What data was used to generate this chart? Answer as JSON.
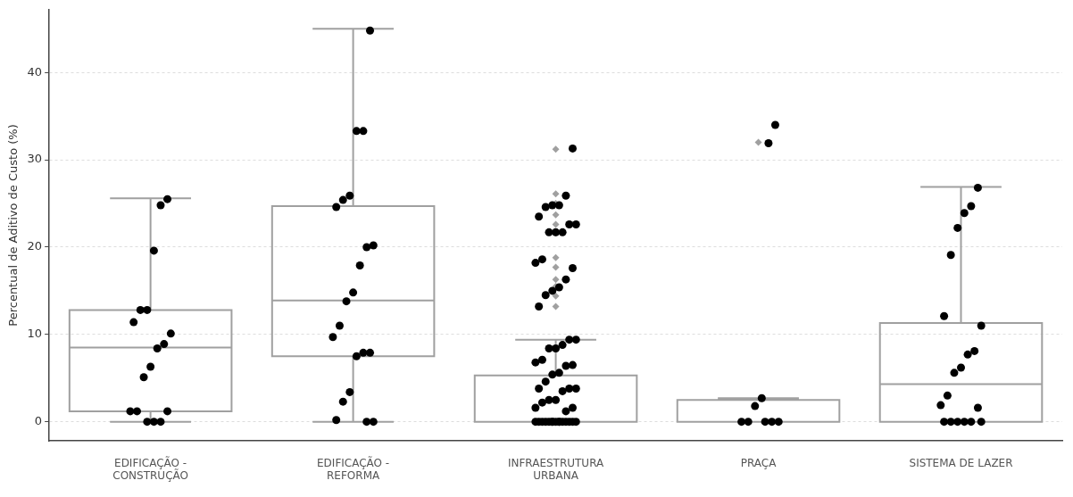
{
  "chart_data": {
    "type": "box",
    "ylabel": "Percentual de Aditivo de Custo (%)",
    "categories": [
      "EDIFICAÇÃO - CONSTRUÇÃO",
      "EDIFICAÇÃO - REFORMA",
      "INFRAESTRUTURA URBANA",
      "PRAÇA",
      "SISTEMA DE LAZER"
    ],
    "ylim": [
      -2.2,
      47.2
    ],
    "yticks": [
      0,
      10,
      20,
      30,
      40
    ],
    "grid": "y",
    "series": [
      {
        "type": "box",
        "color": "#a0a0a0",
        "marker": "diamond",
        "boxes": [
          {
            "low": 0,
            "q1": 1.2,
            "median": 8.5,
            "q3": 12.8,
            "high": 25.6
          },
          {
            "low": 0,
            "q1": 7.5,
            "median": 13.9,
            "q3": 24.7,
            "high": 45
          },
          {
            "low": 0,
            "q1": 0,
            "median": 0,
            "q3": 5.3,
            "high": 9.4,
            "outliers": [
              31.2,
              26.1,
              25.0,
              23.7,
              22.6,
              21.6,
              18.8,
              17.7,
              16.3,
              15.5,
              14.4,
              13.2
            ]
          },
          {
            "low": 0,
            "q1": 0,
            "median": 0,
            "q3": 2.5,
            "high": 2.7,
            "outliers": [
              32
            ]
          },
          {
            "low": 0,
            "q1": 0,
            "median": 4.3,
            "q3": 11.3,
            "high": 26.9
          }
        ]
      },
      {
        "type": "scatter",
        "color": "#000000",
        "marker": "circle",
        "x": [
          "EDIFICAÇÃO - CONSTRUÇÃO",
          "EDIFICAÇÃO - CONSTRUÇÃO",
          "EDIFICAÇÃO - CONSTRUÇÃO",
          "EDIFICAÇÃO - CONSTRUÇÃO",
          "EDIFICAÇÃO - CONSTRUÇÃO",
          "EDIFICAÇÃO - CONSTRUÇÃO",
          "EDIFICAÇÃO - CONSTRUÇÃO",
          "EDIFICAÇÃO - CONSTRUÇÃO",
          "EDIFICAÇÃO - CONSTRUÇÃO",
          "EDIFICAÇÃO - CONSTRUÇÃO",
          "EDIFICAÇÃO - CONSTRUÇÃO",
          "EDIFICAÇÃO - CONSTRUÇÃO",
          "EDIFICAÇÃO - CONSTRUÇÃO",
          "EDIFICAÇÃO - CONSTRUÇÃO",
          "EDIFICAÇÃO - CONSTRUÇÃO",
          "EDIFICAÇÃO - CONSTRUÇÃO",
          "EDIFICAÇÃO - CONSTRUÇÃO",
          "EDIFICAÇÃO - REFORMA",
          "EDIFICAÇÃO - REFORMA",
          "EDIFICAÇÃO - REFORMA",
          "EDIFICAÇÃO - REFORMA",
          "EDIFICAÇÃO - REFORMA",
          "EDIFICAÇÃO - REFORMA",
          "EDIFICAÇÃO - REFORMA",
          "EDIFICAÇÃO - REFORMA",
          "EDIFICAÇÃO - REFORMA",
          "EDIFICAÇÃO - REFORMA",
          "EDIFICAÇÃO - REFORMA",
          "EDIFICAÇÃO - REFORMA",
          "EDIFICAÇÃO - REFORMA",
          "EDIFICAÇÃO - REFORMA",
          "EDIFICAÇÃO - REFORMA",
          "EDIFICAÇÃO - REFORMA",
          "EDIFICAÇÃO - REFORMA",
          "EDIFICAÇÃO - REFORMA",
          "EDIFICAÇÃO - REFORMA",
          "EDIFICAÇÃO - REFORMA",
          "EDIFICAÇÃO - REFORMA",
          "INFRAESTRUTURA URBANA",
          "INFRAESTRUTURA URBANA",
          "INFRAESTRUTURA URBANA",
          "INFRAESTRUTURA URBANA",
          "INFRAESTRUTURA URBANA",
          "INFRAESTRUTURA URBANA",
          "INFRAESTRUTURA URBANA",
          "INFRAESTRUTURA URBANA",
          "INFRAESTRUTURA URBANA",
          "INFRAESTRUTURA URBANA",
          "INFRAESTRUTURA URBANA",
          "INFRAESTRUTURA URBANA",
          "INFRAESTRUTURA URBANA",
          "INFRAESTRUTURA URBANA",
          "INFRAESTRUTURA URBANA",
          "INFRAESTRUTURA URBANA",
          "INFRAESTRUTURA URBANA",
          "INFRAESTRUTURA URBANA",
          "INFRAESTRUTURA URBANA",
          "INFRAESTRUTURA URBANA",
          "INFRAESTRUTURA URBANA",
          "INFRAESTRUTURA URBANA",
          "INFRAESTRUTURA URBANA",
          "INFRAESTRUTURA URBANA",
          "INFRAESTRUTURA URBANA",
          "INFRAESTRUTURA URBANA",
          "INFRAESTRUTURA URBANA",
          "INFRAESTRUTURA URBANA",
          "INFRAESTRUTURA URBANA",
          "INFRAESTRUTURA URBANA",
          "INFRAESTRUTURA URBANA",
          "INFRAESTRUTURA URBANA",
          "INFRAESTRUTURA URBANA",
          "INFRAESTRUTURA URBANA",
          "INFRAESTRUTURA URBANA",
          "INFRAESTRUTURA URBANA",
          "INFRAESTRUTURA URBANA",
          "INFRAESTRUTURA URBANA",
          "INFRAESTRUTURA URBANA",
          "INFRAESTRUTURA URBANA",
          "INFRAESTRUTURA URBANA",
          "INFRAESTRUTURA URBANA",
          "INFRAESTRUTURA URBANA",
          "INFRAESTRUTURA URBANA",
          "INFRAESTRUTURA URBANA",
          "INFRAESTRUTURA URBANA",
          "INFRAESTRUTURA URBANA",
          "INFRAESTRUTURA URBANA",
          "INFRAESTRUTURA URBANA",
          "INFRAESTRUTURA URBANA",
          "INFRAESTRUTURA URBANA",
          "INFRAESTRUTURA URBANA",
          "INFRAESTRUTURA URBANA",
          "INFRAESTRUTURA URBANA",
          "INFRAESTRUTURA URBANA",
          "INFRAESTRUTURA URBANA",
          "PRAÇA",
          "PRAÇA",
          "PRAÇA",
          "PRAÇA",
          "PRAÇA",
          "PRAÇA",
          "PRAÇA",
          "PRAÇA",
          "PRAÇA",
          "SISTEMA DE LAZER",
          "SISTEMA DE LAZER",
          "SISTEMA DE LAZER",
          "SISTEMA DE LAZER",
          "SISTEMA DE LAZER",
          "SISTEMA DE LAZER",
          "SISTEMA DE LAZER",
          "SISTEMA DE LAZER",
          "SISTEMA DE LAZER",
          "SISTEMA DE LAZER",
          "SISTEMA DE LAZER",
          "SISTEMA DE LAZER",
          "SISTEMA DE LAZER",
          "SISTEMA DE LAZER",
          "SISTEMA DE LAZER",
          "SISTEMA DE LAZER",
          "SISTEMA DE LAZER",
          "SISTEMA DE LAZER",
          "SISTEMA DE LAZER",
          "SISTEMA DE LAZER"
        ],
        "values": [
          25.5,
          24.8,
          19.6,
          12.8,
          12.8,
          11.4,
          10.1,
          8.9,
          8.4,
          6.3,
          5.1,
          1.2,
          1.2,
          1.2,
          0,
          0,
          0,
          44.8,
          33.3,
          33.3,
          25.9,
          25.4,
          24.6,
          20.2,
          20.0,
          17.9,
          14.8,
          13.8,
          11.0,
          9.7,
          7.9,
          7.9,
          7.5,
          3.4,
          2.3,
          0.2,
          0,
          0,
          31.3,
          25.9,
          24.8,
          24.8,
          24.6,
          23.5,
          22.6,
          22.6,
          21.7,
          21.7,
          21.7,
          18.6,
          18.2,
          17.6,
          16.3,
          15.4,
          15.0,
          14.5,
          13.2,
          9.4,
          9.4,
          8.8,
          8.4,
          8.4,
          7.1,
          6.8,
          6.5,
          6.4,
          5.6,
          5.4,
          4.6,
          3.8,
          3.8,
          3.8,
          3.5,
          2.5,
          2.5,
          2.2,
          1.6,
          1.6,
          1.2,
          0,
          0,
          0,
          0,
          0,
          0,
          0,
          0,
          0,
          0,
          0,
          0,
          0,
          0,
          0,
          34.0,
          31.9,
          2.7,
          1.8,
          0,
          0,
          0,
          0,
          0,
          26.8,
          24.7,
          23.9,
          22.2,
          19.1,
          12.1,
          11.0,
          8.1,
          7.7,
          6.2,
          5.6,
          3.0,
          1.9,
          1.6,
          0,
          0,
          0,
          0,
          0,
          0
        ]
      }
    ]
  }
}
